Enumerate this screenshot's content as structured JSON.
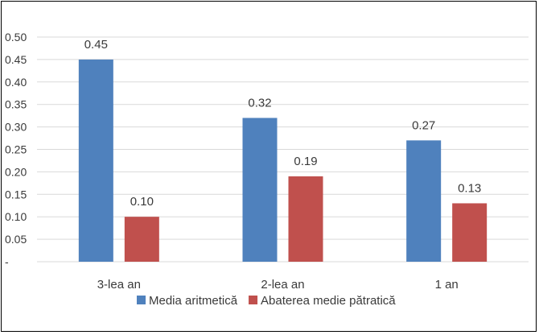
{
  "chart_data": {
    "type": "bar",
    "categories": [
      "3-lea an",
      "2-lea an",
      "1 an"
    ],
    "series": [
      {
        "name": "Media aritmetică",
        "values": [
          0.45,
          0.32,
          0.27
        ],
        "labels": [
          "0.45",
          "0.32",
          "0.27"
        ],
        "color": "#4f81bd"
      },
      {
        "name": "Abaterea medie pătratică",
        "values": [
          0.1,
          0.19,
          0.13
        ],
        "labels": [
          "0.10",
          "0.19",
          "0.13"
        ],
        "color": "#c0504d"
      }
    ],
    "ylim": [
      0,
      0.5
    ],
    "yticks": [
      0,
      0.05,
      0.1,
      0.15,
      0.2,
      0.25,
      0.3,
      0.35,
      0.4,
      0.45,
      0.5
    ],
    "ytick_labels": [
      "-",
      "0.05",
      "0.10",
      "0.15",
      "0.20",
      "0.25",
      "0.30",
      "0.35",
      "0.40",
      "0.45",
      "0.50"
    ],
    "grid": true,
    "legend_position": "bottom",
    "gridline_color": "#d9d9d9"
  }
}
